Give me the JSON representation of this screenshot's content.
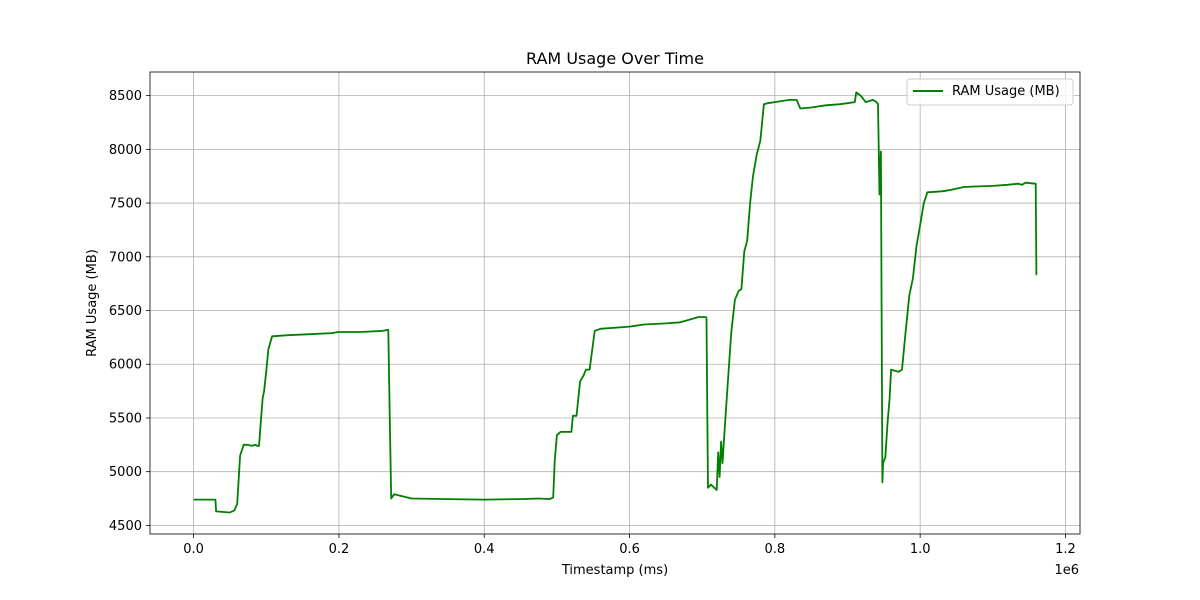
{
  "chart_data": {
    "type": "line",
    "title": "RAM Usage Over Time",
    "xlabel": "Timestamp (ms)",
    "ylabel": "RAM Usage (MB)",
    "x_offset_label": "1e6",
    "xlim": [
      -60000,
      1220000
    ],
    "ylim": [
      4420,
      8720
    ],
    "x_ticks": [
      0,
      200000,
      400000,
      600000,
      800000,
      1000000,
      1200000
    ],
    "x_tick_labels": [
      "0.0",
      "0.2",
      "0.4",
      "0.6",
      "0.8",
      "1.0",
      "1.2"
    ],
    "y_ticks": [
      4500,
      5000,
      5500,
      6000,
      6500,
      7000,
      7500,
      8000,
      8500
    ],
    "y_tick_labels": [
      "4500",
      "5000",
      "5500",
      "6000",
      "6500",
      "7000",
      "7500",
      "8000",
      "8500"
    ],
    "grid": true,
    "legend_position": "top-right",
    "series": [
      {
        "name": "RAM Usage (MB)",
        "color": "#008000",
        "x": [
          0,
          30000,
          31000,
          50000,
          56000,
          60000,
          64000,
          69000,
          75000,
          80000,
          85000,
          88000,
          90000,
          95000,
          97000,
          100000,
          103000,
          108000,
          130000,
          160000,
          190000,
          200000,
          230000,
          260000,
          267000,
          268000,
          270000,
          272000,
          276000,
          300000,
          350000,
          400000,
          450000,
          475000,
          490000,
          495000,
          497000,
          500000,
          505000,
          515000,
          520000,
          522000,
          527000,
          532000,
          537000,
          540000,
          545000,
          552000,
          560000,
          600000,
          620000,
          650000,
          670000,
          685000,
          695000,
          705000,
          706000,
          707000,
          708000,
          712000,
          720000,
          722000,
          724000,
          726000,
          728000,
          731000,
          735000,
          740000,
          745000,
          750000,
          754000,
          758000,
          762000,
          766000,
          770000,
          775000,
          780000,
          785000,
          790000,
          800000,
          820000,
          830000,
          835000,
          850000,
          870000,
          890000,
          910000,
          912000,
          918000,
          925000,
          935000,
          940000,
          942000,
          944000,
          946000,
          947000,
          948000,
          949000,
          950000,
          952000,
          955000,
          958000,
          960000,
          965000,
          970000,
          975000,
          980000,
          985000,
          990000,
          995000,
          1000000,
          1005000,
          1010000,
          1030000,
          1040000,
          1060000,
          1080000,
          1100000,
          1120000,
          1135000,
          1140000,
          1145000,
          1158000,
          1159000,
          1160000
        ],
        "values": [
          4740,
          4740,
          4630,
          4620,
          4640,
          4700,
          5150,
          5250,
          5250,
          5240,
          5250,
          5240,
          5240,
          5680,
          5750,
          5940,
          6140,
          6260,
          6270,
          6280,
          6290,
          6300,
          6300,
          6310,
          6320,
          6320,
          5480,
          4750,
          4790,
          4750,
          4745,
          4740,
          4745,
          4750,
          4745,
          4760,
          5100,
          5340,
          5370,
          5370,
          5370,
          5520,
          5520,
          5840,
          5900,
          5950,
          5950,
          6310,
          6330,
          6350,
          6370,
          6380,
          6390,
          6420,
          6440,
          6440,
          6430,
          5550,
          4850,
          4880,
          4830,
          5180,
          4950,
          5280,
          5080,
          5400,
          5800,
          6300,
          6600,
          6680,
          6700,
          7050,
          7150,
          7500,
          7750,
          7950,
          8080,
          8420,
          8430,
          8440,
          8460,
          8460,
          8380,
          8390,
          8410,
          8420,
          8440,
          8530,
          8500,
          8440,
          8460,
          8440,
          8420,
          7580,
          7980,
          6500,
          4900,
          5080,
          5100,
          5130,
          5450,
          5680,
          5950,
          5940,
          5930,
          5950,
          6300,
          6640,
          6800,
          7100,
          7300,
          7500,
          7600,
          7610,
          7620,
          7650,
          7655,
          7660,
          7670,
          7680,
          7670,
          7690,
          7680,
          7680,
          6830
        ]
      }
    ]
  }
}
